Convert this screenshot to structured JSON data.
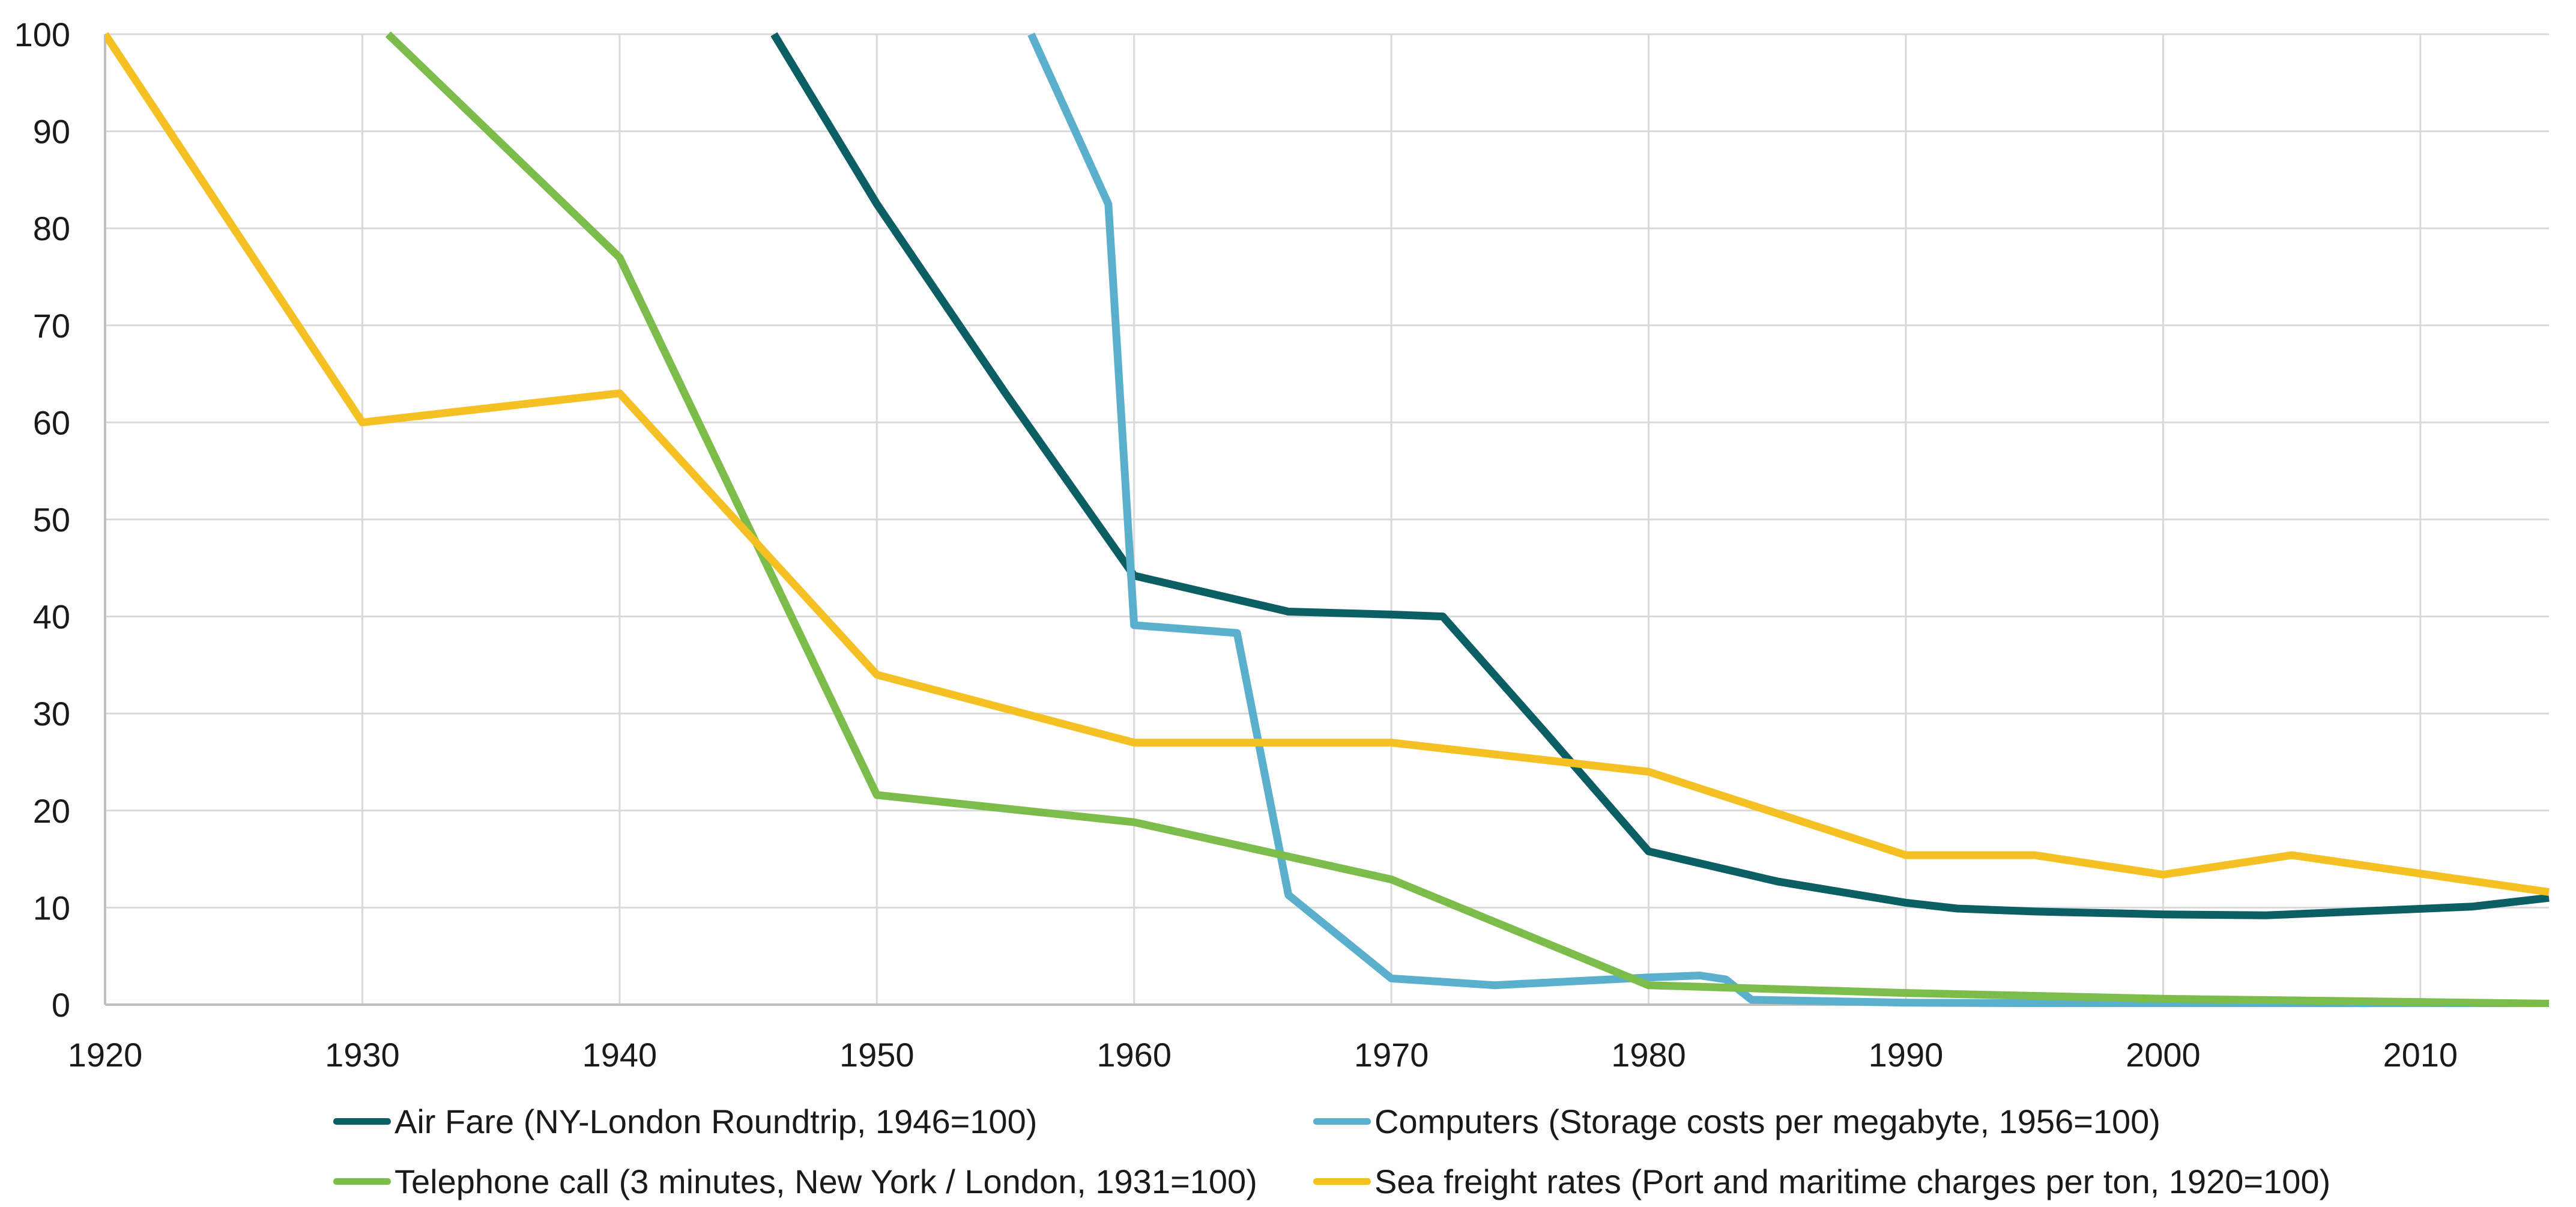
{
  "chart_data": {
    "type": "line",
    "title": "",
    "xlabel": "",
    "ylabel": "",
    "xlim": [
      1920,
      2015
    ],
    "ylim": [
      0,
      100
    ],
    "x_ticks": [
      1920,
      1930,
      1940,
      1950,
      1960,
      1970,
      1980,
      1990,
      2000,
      2010
    ],
    "x_tick_labels": [
      "1920",
      "1930",
      "1940",
      "1950",
      "1960",
      "1970",
      "1980",
      "1990",
      "2000",
      "2010"
    ],
    "y_ticks": [
      0,
      10,
      20,
      30,
      40,
      50,
      60,
      70,
      80,
      90,
      100
    ],
    "y_tick_labels": [
      "0",
      "10",
      "20",
      "30",
      "40",
      "50",
      "60",
      "70",
      "80",
      "90",
      "100"
    ],
    "grid": true,
    "legend_position": "bottom",
    "series": [
      {
        "name": "Air Fare (NY-London Roundtrip, 1946=100)",
        "color": "#0b5e63",
        "points": [
          [
            1946,
            100
          ],
          [
            1950,
            82.5
          ],
          [
            1955,
            63
          ],
          [
            1960,
            44.2
          ],
          [
            1966,
            40.5
          ],
          [
            1970,
            40.2
          ],
          [
            1972,
            40
          ],
          [
            1976,
            28
          ],
          [
            1980,
            15.8
          ],
          [
            1985,
            12.7
          ],
          [
            1990,
            10.5
          ],
          [
            1992,
            9.9
          ],
          [
            1995,
            9.6
          ],
          [
            2000,
            9.3
          ],
          [
            2004,
            9.2
          ],
          [
            2012,
            10.1
          ],
          [
            2015,
            11
          ]
        ]
      },
      {
        "name": "Computers (Storage costs per megabyte, 1956=100)",
        "color": "#5ab0cc",
        "points": [
          [
            1956,
            100
          ],
          [
            1959,
            82.5
          ],
          [
            1960,
            39.1
          ],
          [
            1964,
            38.3
          ],
          [
            1966,
            11.3
          ],
          [
            1970,
            2.7
          ],
          [
            1974,
            2
          ],
          [
            1980,
            2.8
          ],
          [
            1982,
            3
          ],
          [
            1983,
            2.6
          ],
          [
            1984,
            0.5
          ],
          [
            1990,
            0.2
          ],
          [
            2000,
            0.1
          ],
          [
            2015,
            0
          ]
        ]
      },
      {
        "name": "Telephone call (3 minutes, New York / London, 1931=100)",
        "color": "#7cbc4a",
        "points": [
          [
            1931,
            100
          ],
          [
            1940,
            77
          ],
          [
            1950,
            21.6
          ],
          [
            1960,
            18.8
          ],
          [
            1970,
            12.9
          ],
          [
            1980,
            2
          ],
          [
            1990,
            1.2
          ],
          [
            2000,
            0.6
          ],
          [
            2015,
            0.1
          ]
        ]
      },
      {
        "name": "Sea freight rates (Port and maritime charges per ton, 1920=100)",
        "color": "#f4c023",
        "points": [
          [
            1920,
            100
          ],
          [
            1930,
            60
          ],
          [
            1940,
            63
          ],
          [
            1950,
            34
          ],
          [
            1960,
            27
          ],
          [
            1970,
            27
          ],
          [
            1980,
            24
          ],
          [
            1990,
            15.4
          ],
          [
            1995,
            15.4
          ],
          [
            2000,
            13.4
          ],
          [
            2005,
            15.4
          ],
          [
            2015,
            11.6
          ]
        ]
      }
    ]
  }
}
